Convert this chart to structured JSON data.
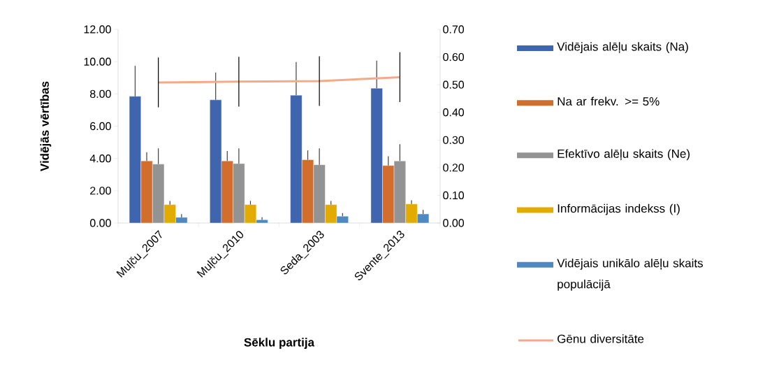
{
  "chart_data": {
    "type": "bar",
    "xlabel": "Sēklu partija",
    "ylabel": "Vidējās vērtības",
    "categories": [
      "Muļču_2007",
      "Muļču_2010",
      "Seda_2003",
      "Svente_2013"
    ],
    "series": [
      {
        "name": "Vidējais alēļu skaits (Na)",
        "color": "#3f65ae",
        "values": [
          7.85,
          7.63,
          7.92,
          8.35
        ],
        "errors": [
          [
            7.85,
            9.74
          ],
          [
            7.63,
            9.32
          ],
          [
            7.92,
            9.97
          ],
          [
            8.35,
            10.06
          ]
        ]
      },
      {
        "name": "Na ar frekv. >= 5%",
        "color": "#d26e2d",
        "values": [
          3.85,
          3.85,
          3.92,
          3.56
        ],
        "errors": [
          [
            3.85,
            4.39
          ],
          [
            3.85,
            4.46
          ],
          [
            3.92,
            4.5
          ],
          [
            3.56,
            4.14
          ]
        ]
      },
      {
        "name": "Efektīvo alēļu skaits (Ne)",
        "color": "#939393",
        "values": [
          3.65,
          3.68,
          3.61,
          3.84
        ],
        "errors": [
          [
            3.65,
            4.62
          ],
          [
            3.68,
            4.62
          ],
          [
            3.61,
            4.62
          ],
          [
            3.84,
            4.88
          ]
        ]
      },
      {
        "name": "Informācijas indekss (I)",
        "color": "#e2ab00",
        "values": [
          1.14,
          1.14,
          1.14,
          1.18
        ],
        "errors": [
          [
            1.14,
            1.37
          ],
          [
            1.14,
            1.37
          ],
          [
            1.14,
            1.37
          ],
          [
            1.18,
            1.41
          ]
        ]
      },
      {
        "name": "Vidējais unikālo alēļu skaits populācijā",
        "color": "#4f89c1",
        "values": [
          0.35,
          0.2,
          0.42,
          0.56
        ],
        "errors": [
          [
            0.35,
            0.55
          ],
          [
            0.2,
            0.36
          ],
          [
            0.42,
            0.62
          ],
          [
            0.56,
            0.81
          ]
        ]
      },
      {
        "name": "Gēnu diversitāte",
        "type": "line",
        "axis": "y2",
        "color": "#f4aa88",
        "values": [
          0.508,
          0.511,
          0.513,
          0.527
        ],
        "errors": [
          0.09,
          0.09,
          0.09,
          0.09
        ]
      }
    ],
    "ylim": [
      0,
      12
    ],
    "yticks": [
      {
        "value": 0,
        "label": "0.00"
      },
      {
        "value": 2,
        "label": "2.00"
      },
      {
        "value": 4,
        "label": "4.00"
      },
      {
        "value": 6,
        "label": "6.00"
      },
      {
        "value": 8,
        "label": "8.00"
      },
      {
        "value": 10,
        "label": "10.00"
      },
      {
        "value": 12,
        "label": "12.00"
      }
    ],
    "y2lim": [
      0,
      0.7
    ],
    "y2ticks": [
      {
        "value": 0,
        "label": "0.00"
      },
      {
        "value": 0.1,
        "label": "0.10"
      },
      {
        "value": 0.2,
        "label": "0.20"
      },
      {
        "value": 0.3,
        "label": "0.30"
      },
      {
        "value": 0.4,
        "label": "0.40"
      },
      {
        "value": 0.5,
        "label": "0.50"
      },
      {
        "value": 0.6,
        "label": "0.60"
      },
      {
        "value": 0.7,
        "label": "0.70"
      }
    ],
    "legend": "right",
    "marker": "none"
  }
}
